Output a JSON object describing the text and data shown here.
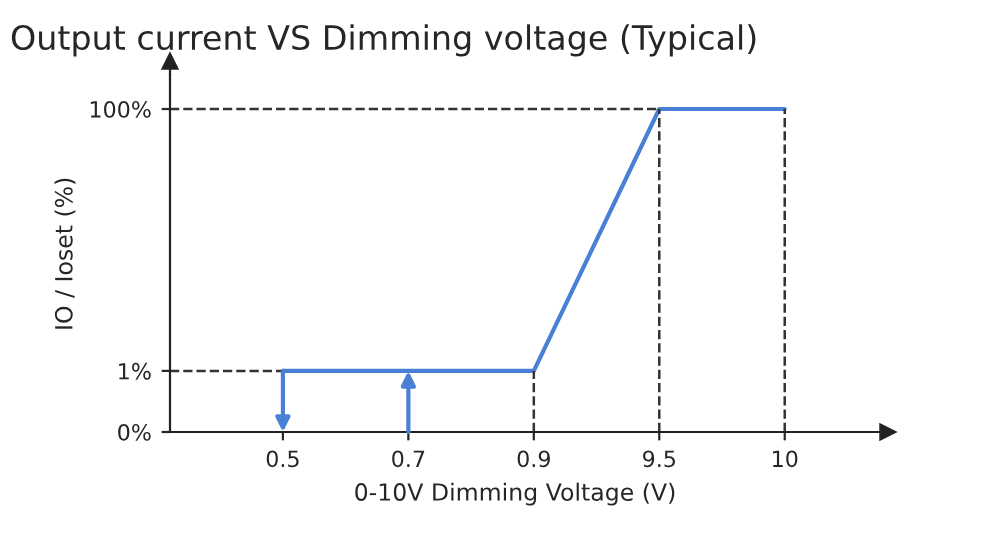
{
  "chart_data": {
    "type": "line",
    "title": "Output current VS Dimming voltage (Typical)",
    "xlabel": "0-10V Dimming Voltage (V)",
    "ylabel": "IO / Ioset (%)",
    "categories": [
      "0.5",
      "0.7",
      "0.9",
      "9.5",
      "10"
    ],
    "series": [
      {
        "color": "#4a7fd6",
        "values": [
          1,
          1,
          1,
          100,
          100
        ]
      }
    ],
    "log": "y",
    "ylim": [
      0,
      180
    ],
    "yticks": [
      {
        "value": 0,
        "label": "0%"
      },
      {
        "value": 1,
        "label": "1%"
      },
      {
        "value": 100,
        "label": "100%"
      }
    ],
    "ref_lines": [
      {
        "axis": "y",
        "value": 1,
        "color": "#333333",
        "line_style": "dashed"
      },
      {
        "axis": "y",
        "value": 100,
        "color": "#333333",
        "line_style": "dashed"
      },
      {
        "axis": "x",
        "value": "0.9",
        "color": "#333333",
        "line_style": "dashed"
      },
      {
        "axis": "x",
        "value": "9.5",
        "color": "#333333",
        "line_style": "dashed"
      },
      {
        "axis": "x",
        "value": "10",
        "color": "#333333",
        "line_style": "dashed"
      }
    ],
    "grid": false,
    "legend": false,
    "marker": "none"
  }
}
